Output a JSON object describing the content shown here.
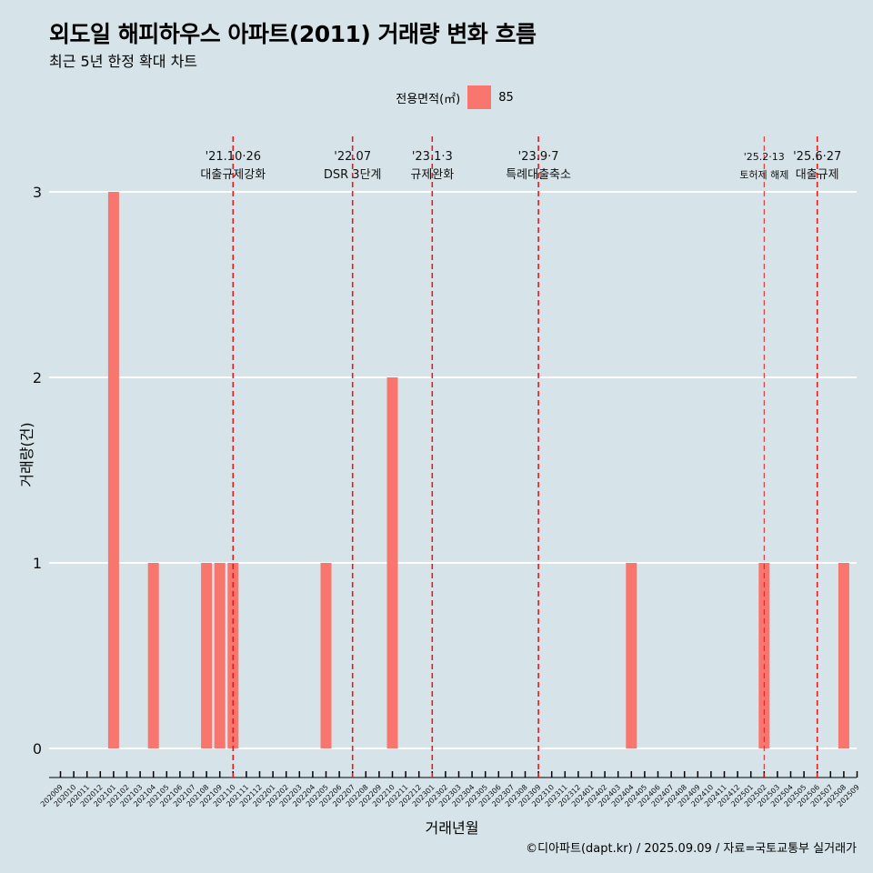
{
  "title": "외도일 해피하우스 아파트(2011) 거래량 변화 흐름",
  "subtitle": "최근 5년 한정 확대 차트",
  "caption": "©디아파트(dapt.kr) / 2025.09.09 / 자료=국토교통부 실거래가",
  "colors": {
    "background": "#d6e4ea",
    "bar": "#f8766d",
    "vline": "#e41a1c",
    "grid": "#ffffff"
  },
  "chart_data": {
    "type": "bar",
    "xlabel": "거래년월",
    "ylabel": "거래량(건)",
    "ylim": [
      0,
      3
    ],
    "yticks": [
      0,
      1,
      2,
      3
    ],
    "grid": true,
    "legend": {
      "title": "전용면적(㎡)",
      "position": "top",
      "entries": [
        "85"
      ]
    },
    "categories": [
      "202009",
      "202010",
      "202011",
      "202012",
      "202101",
      "202102",
      "202103",
      "202104",
      "202105",
      "202106",
      "202107",
      "202108",
      "202109",
      "202110",
      "202111",
      "202112",
      "202201",
      "202202",
      "202203",
      "202204",
      "202205",
      "202206",
      "202207",
      "202208",
      "202209",
      "202210",
      "202211",
      "202212",
      "202301",
      "202302",
      "202303",
      "202304",
      "202305",
      "202306",
      "202307",
      "202308",
      "202309",
      "202310",
      "202311",
      "202312",
      "202401",
      "202402",
      "202403",
      "202404",
      "202405",
      "202406",
      "202407",
      "202408",
      "202409",
      "202410",
      "202411",
      "202412",
      "202501",
      "202502",
      "202503",
      "202504",
      "202505",
      "202506",
      "202507",
      "202508",
      "202509"
    ],
    "series": [
      {
        "name": "85",
        "values": [
          0,
          0,
          0,
          0,
          3,
          0,
          0,
          1,
          0,
          0,
          0,
          1,
          1,
          1,
          0,
          0,
          0,
          0,
          0,
          0,
          1,
          0,
          0,
          0,
          0,
          2,
          0,
          0,
          0,
          0,
          0,
          0,
          0,
          0,
          0,
          0,
          0,
          0,
          0,
          0,
          0,
          0,
          0,
          1,
          0,
          0,
          0,
          0,
          0,
          0,
          0,
          0,
          0,
          1,
          0,
          0,
          0,
          0,
          0,
          1,
          0
        ]
      }
    ],
    "annotations": [
      {
        "x": "202110",
        "label_date": "'21.10·26",
        "label_text": "대출규제강화"
      },
      {
        "x": "202207",
        "label_date": "'22.07",
        "label_text": "DSR 3단계"
      },
      {
        "x": "202301",
        "label_date": "'23.1·3",
        "label_text": "규제완화"
      },
      {
        "x": "202309",
        "label_date": "'23.9·7",
        "label_text": "특례대출축소"
      },
      {
        "x": "202502",
        "label_date": "'25.2·13",
        "label_text": "토허제 해제"
      },
      {
        "x": "202506",
        "label_date": "'25.6·27",
        "label_text": "대출규제"
      }
    ]
  }
}
